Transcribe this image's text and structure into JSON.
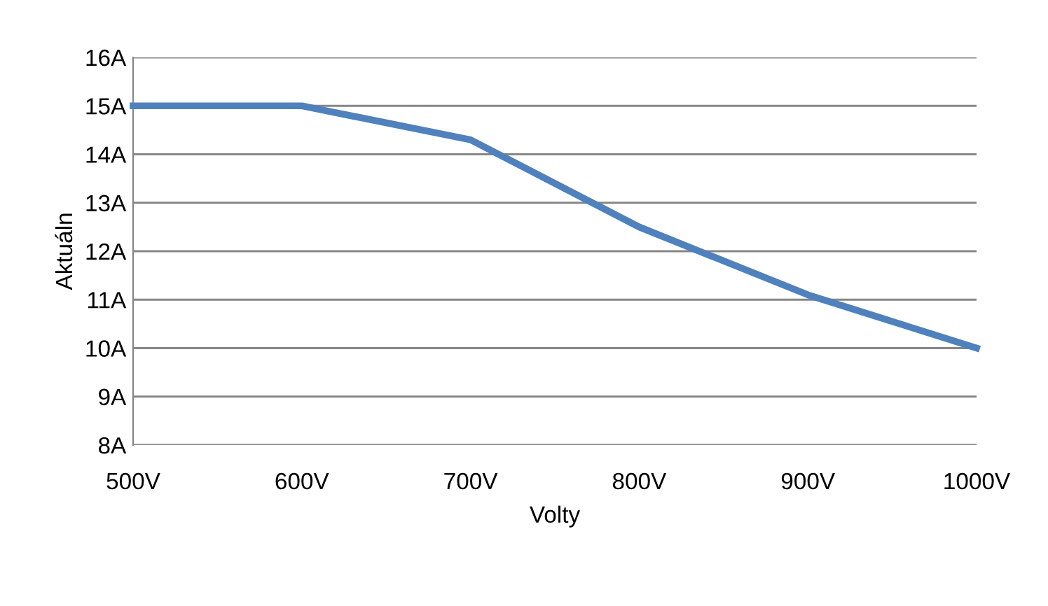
{
  "chart_data": {
    "type": "line",
    "xlabel": "Volty",
    "ylabel": "Aktuáln",
    "x": [
      500,
      600,
      700,
      800,
      900,
      1000
    ],
    "series": [
      {
        "color": "#4f81bd",
        "values": [
          15,
          15,
          14.3,
          12.5,
          11.1,
          10
        ]
      }
    ],
    "xlim": [
      500,
      1000
    ],
    "xticks": [
      {
        "value": 500,
        "label": "500V"
      },
      {
        "value": 600,
        "label": "600V"
      },
      {
        "value": 700,
        "label": "700V"
      },
      {
        "value": 800,
        "label": "800V"
      },
      {
        "value": 900,
        "label": "900V"
      },
      {
        "value": 1000,
        "label": "1000V"
      }
    ],
    "ylim": [
      8,
      16
    ],
    "yticks": [
      {
        "value": 8,
        "label": "8A"
      },
      {
        "value": 9,
        "label": "9A"
      },
      {
        "value": 10,
        "label": "10A"
      },
      {
        "value": 11,
        "label": "11A"
      },
      {
        "value": 12,
        "label": "12A"
      },
      {
        "value": 13,
        "label": "13A"
      },
      {
        "value": 14,
        "label": "14A"
      },
      {
        "value": 15,
        "label": "15A"
      },
      {
        "value": 16,
        "label": "16A"
      }
    ],
    "grid": "y",
    "legend": false,
    "marker": "none",
    "line_style": "solid"
  }
}
